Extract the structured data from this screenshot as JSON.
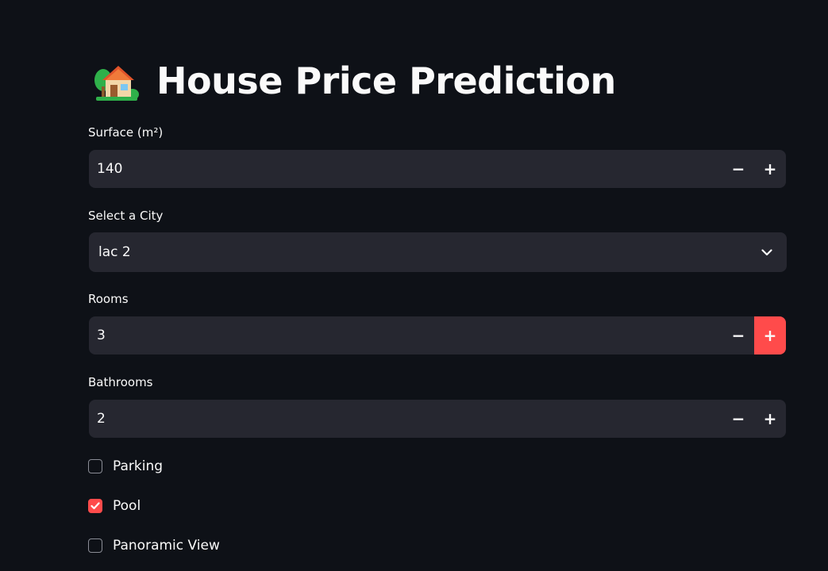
{
  "page": {
    "title": "House Price Prediction",
    "title_icon": "house-with-garden-icon"
  },
  "surface": {
    "label": "Surface (m²)",
    "value": "140",
    "minus": "−",
    "plus": "+"
  },
  "city": {
    "label": "Select a City",
    "value": "lac 2",
    "icon": "chevron-down-icon"
  },
  "rooms": {
    "label": "Rooms",
    "value": "3",
    "minus": "−",
    "plus": "+"
  },
  "bathrooms": {
    "label": "Bathrooms",
    "value": "2",
    "minus": "−",
    "plus": "+"
  },
  "options": [
    {
      "label": "Parking",
      "checked": false
    },
    {
      "label": "Pool",
      "checked": true
    },
    {
      "label": "Panoramic View",
      "checked": false
    }
  ],
  "colors": {
    "background": "#0e1117",
    "input_bg": "#262730",
    "accent": "#ff4b4b",
    "text": "#fafafa"
  }
}
